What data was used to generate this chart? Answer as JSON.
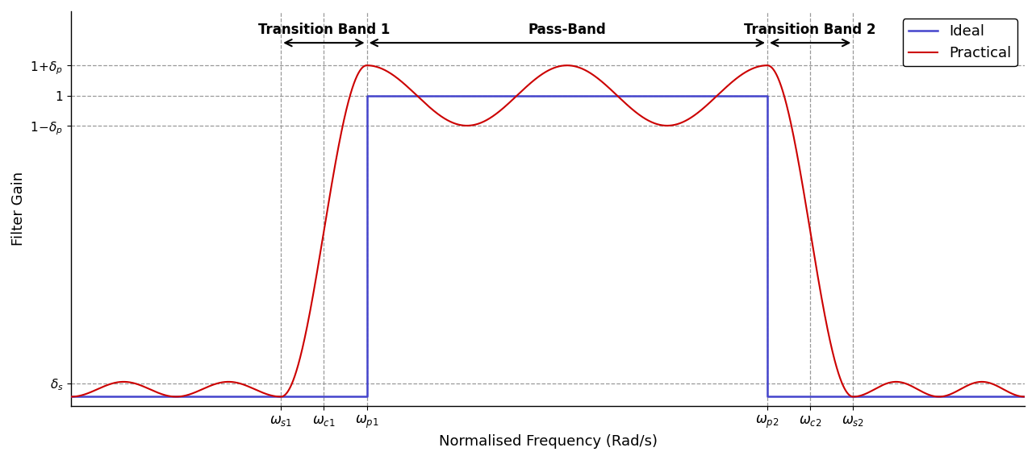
{
  "xlabel": "Normalised Frequency (Rad/s)",
  "ylabel": "Filter Gain",
  "ideal_color": "#4444cc",
  "practical_color": "#cc0000",
  "background_color": "#ffffff",
  "legend_labels": [
    "Ideal",
    "Practical"
  ],
  "delta_p": 0.1,
  "delta_s": 0.045,
  "omega_s1": 0.22,
  "omega_c1": 0.265,
  "omega_p1": 0.31,
  "omega_p2": 0.73,
  "omega_c2": 0.775,
  "omega_s2": 0.82,
  "xlim": [
    0.0,
    1.0
  ],
  "ylim": [
    -0.03,
    1.28
  ],
  "annotation_fontsize": 12,
  "label_fontsize": 13,
  "tick_fontsize": 11,
  "transition_band1_label": "Transition Band 1",
  "transition_band2_label": "Transition Band 2",
  "passband_label": "Pass-Band",
  "grid_color": "#999999",
  "grid_style": "--"
}
